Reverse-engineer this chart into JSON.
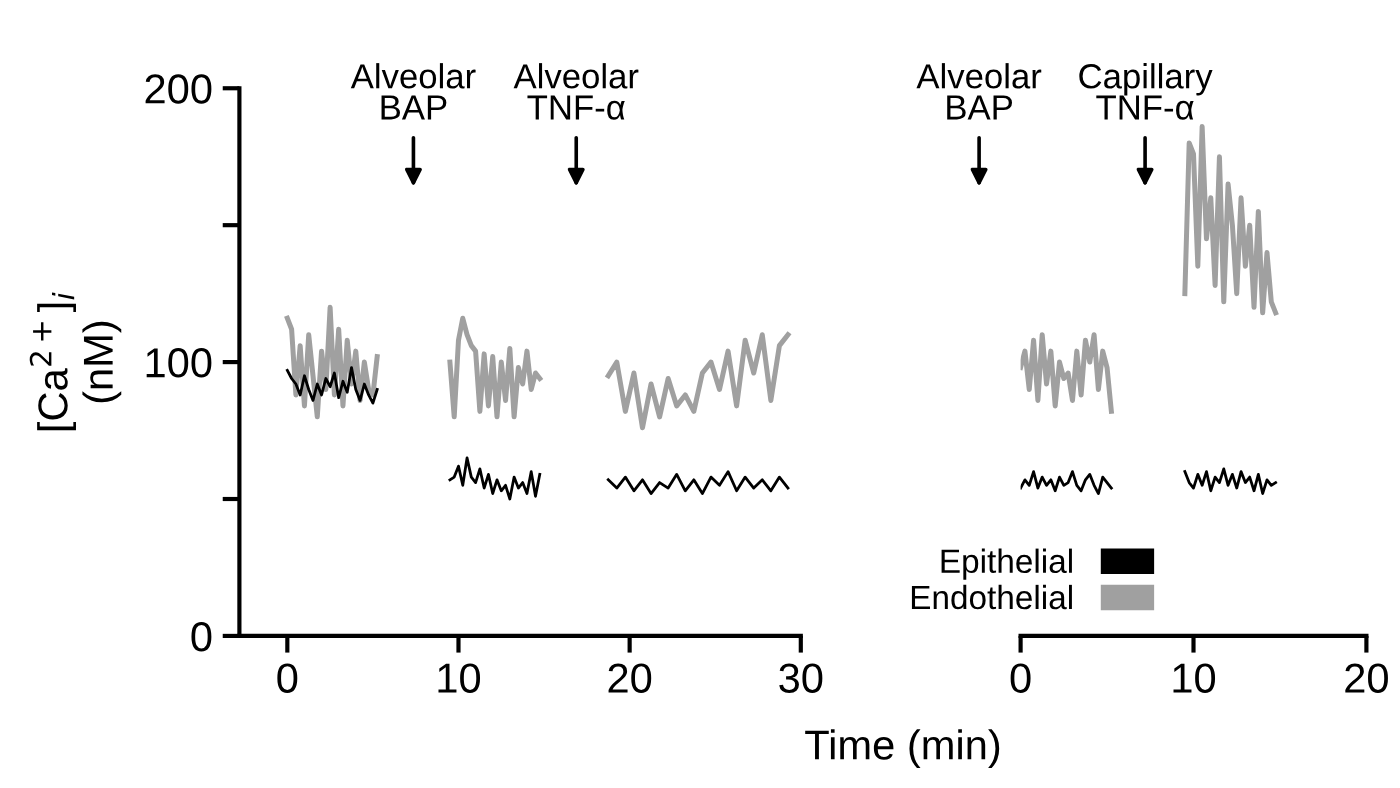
{
  "chart_data": [
    {
      "type": "line",
      "ylabel": "[Ca$^{2+}$]$_{i}$\n(nM)",
      "xlim": [
        -2.8,
        30
      ],
      "xticks": [
        0,
        10,
        20,
        30
      ],
      "ylim": [
        0,
        200
      ],
      "yticks": [
        0,
        {
          "value": 50,
          "label": null
        },
        100,
        {
          "value": 150,
          "label": null
        },
        200
      ],
      "grid": false,
      "legend": false,
      "marker": "none",
      "line_style": "solid",
      "annotations": [
        "Alveolar\nBAP",
        "Alveolar\nTNF-α"
      ],
      "series": [
        {
          "color": "#a0a0a0",
          "x": [
            0,
            0.25,
            0.5,
            0.75,
            1,
            1.25,
            1.5,
            1.75,
            2,
            2.25,
            2.5,
            2.75,
            3,
            3.25,
            3.5,
            3.75,
            4,
            4.25,
            4.5,
            4.75,
            5,
            5.25,
            7.5,
            9.5,
            9.75,
            10,
            10.25,
            10.5,
            10.75,
            11,
            11.25,
            11.5,
            11.75,
            12,
            12.25,
            12.5,
            12.75,
            13,
            13.25,
            13.5,
            13.75,
            14,
            14.25,
            14.5,
            14.75,
            17,
            18.75,
            19.25,
            19.75,
            20.25,
            20.75,
            21.25,
            21.75,
            22.25,
            22.75,
            23.25,
            23.75,
            24.25,
            24.75,
            25.25,
            25.75,
            26.25,
            26.75,
            27.25,
            27.75,
            28.25,
            28.75,
            29.25
          ],
          "values": [
            116,
            112,
            88,
            106,
            84,
            110,
            95,
            80,
            104,
            90,
            120,
            88,
            112,
            84,
            108,
            92,
            104,
            86,
            100,
            90,
            88,
            102,
            null,
            100,
            80,
            108,
            116,
            110,
            106,
            104,
            82,
            103,
            84,
            102,
            80,
            100,
            86,
            105,
            80,
            98,
            92,
            104,
            90,
            96,
            94,
            null,
            95,
            100,
            82,
            96,
            76,
            92,
            80,
            94,
            84,
            88,
            82,
            96,
            100,
            90,
            104,
            84,
            108,
            96,
            110,
            86,
            106,
            110
          ]
        },
        {
          "color": "#000000",
          "x": [
            0,
            0.25,
            0.5,
            0.75,
            1,
            1.25,
            1.5,
            1.75,
            2,
            2.25,
            2.5,
            2.75,
            3,
            3.25,
            3.5,
            3.75,
            4,
            4.25,
            4.5,
            4.75,
            5,
            5.25,
            7.5,
            9.5,
            9.75,
            10,
            10.25,
            10.5,
            10.75,
            11,
            11.25,
            11.5,
            11.75,
            12,
            12.25,
            12.5,
            12.75,
            13,
            13.25,
            13.5,
            13.75,
            14,
            14.25,
            14.5,
            14.75,
            17,
            18.75,
            19.25,
            19.75,
            20.25,
            20.75,
            21.25,
            21.75,
            22.25,
            22.75,
            23.25,
            23.75,
            24.25,
            24.75,
            25.25,
            25.75,
            26.25,
            26.75,
            27.25,
            27.75,
            28.25,
            28.75,
            29.25
          ],
          "values": [
            97,
            94,
            92,
            88,
            95,
            90,
            86,
            92,
            88,
            94,
            91,
            96,
            87,
            93,
            89,
            98,
            90,
            86,
            92,
            88,
            85,
            90,
            null,
            57,
            58,
            62,
            55,
            65,
            58,
            56,
            61,
            54,
            59,
            52,
            57,
            53,
            55,
            50,
            58,
            54,
            56,
            52,
            60,
            51,
            59,
            null,
            57,
            54,
            58,
            53,
            57,
            52,
            56,
            54,
            59,
            53,
            57,
            52,
            58,
            55,
            60,
            53,
            58,
            54,
            57,
            53,
            58,
            54
          ]
        }
      ]
    },
    {
      "type": "line",
      "xlabel": "Time (min)",
      "xlim": [
        0,
        20
      ],
      "xticks": [
        0,
        10,
        20
      ],
      "ylim": [
        0,
        200
      ],
      "tick_labels": "x",
      "grid": false,
      "legend": "bottom left",
      "marker": "none",
      "line_style": "solid",
      "annotations": [
        "Alveolar\nBAP",
        "Capillary\nTNF-α"
      ],
      "series": [
        {
          "name": "Epithelial",
          "color": "#000000",
          "x": [
            0,
            0.25,
            0.5,
            0.75,
            1,
            1.25,
            1.5,
            1.75,
            2,
            2.25,
            2.5,
            2.75,
            3,
            3.25,
            3.5,
            3.75,
            4,
            4.25,
            4.5,
            4.75,
            5,
            5.25,
            7.5,
            9.5,
            9.75,
            10,
            10.25,
            10.5,
            10.75,
            11,
            11.25,
            11.5,
            11.75,
            12,
            12.25,
            12.5,
            12.75,
            13,
            13.25,
            13.5,
            13.75,
            14,
            14.25,
            14.5,
            14.75
          ],
          "values": [
            54,
            57,
            55,
            60,
            54,
            58,
            55,
            57,
            53,
            58,
            55,
            56,
            60,
            55,
            53,
            57,
            59,
            55,
            52,
            58,
            56,
            54,
            null,
            60,
            56,
            54,
            59,
            55,
            60,
            53,
            58,
            56,
            61,
            55,
            59,
            54,
            60,
            56,
            58,
            53,
            59,
            52,
            57,
            55,
            56
          ]
        },
        {
          "name": "Endothelial",
          "color": "#a0a0a0",
          "x": [
            0,
            0.25,
            0.5,
            0.75,
            1,
            1.25,
            1.5,
            1.75,
            2,
            2.25,
            2.5,
            2.75,
            3,
            3.25,
            3.5,
            3.75,
            4,
            4.25,
            4.5,
            4.75,
            5,
            5.25,
            7.5,
            9.5,
            9.75,
            10,
            10.25,
            10.5,
            10.75,
            11,
            11.25,
            11.5,
            11.75,
            12,
            12.25,
            12.5,
            12.75,
            13,
            13.25,
            13.5,
            13.75,
            14,
            14.25,
            14.5,
            14.75
          ],
          "values": [
            98,
            104,
            90,
            108,
            86,
            110,
            92,
            104,
            84,
            100,
            94,
            96,
            86,
            104,
            88,
            108,
            100,
            110,
            90,
            104,
            98,
            82,
            null,
            125,
            180,
            176,
            135,
            186,
            145,
            160,
            128,
            175,
            122,
            165,
            150,
            125,
            160,
            135,
            150,
            120,
            155,
            118,
            140,
            122,
            118
          ]
        }
      ]
    }
  ]
}
